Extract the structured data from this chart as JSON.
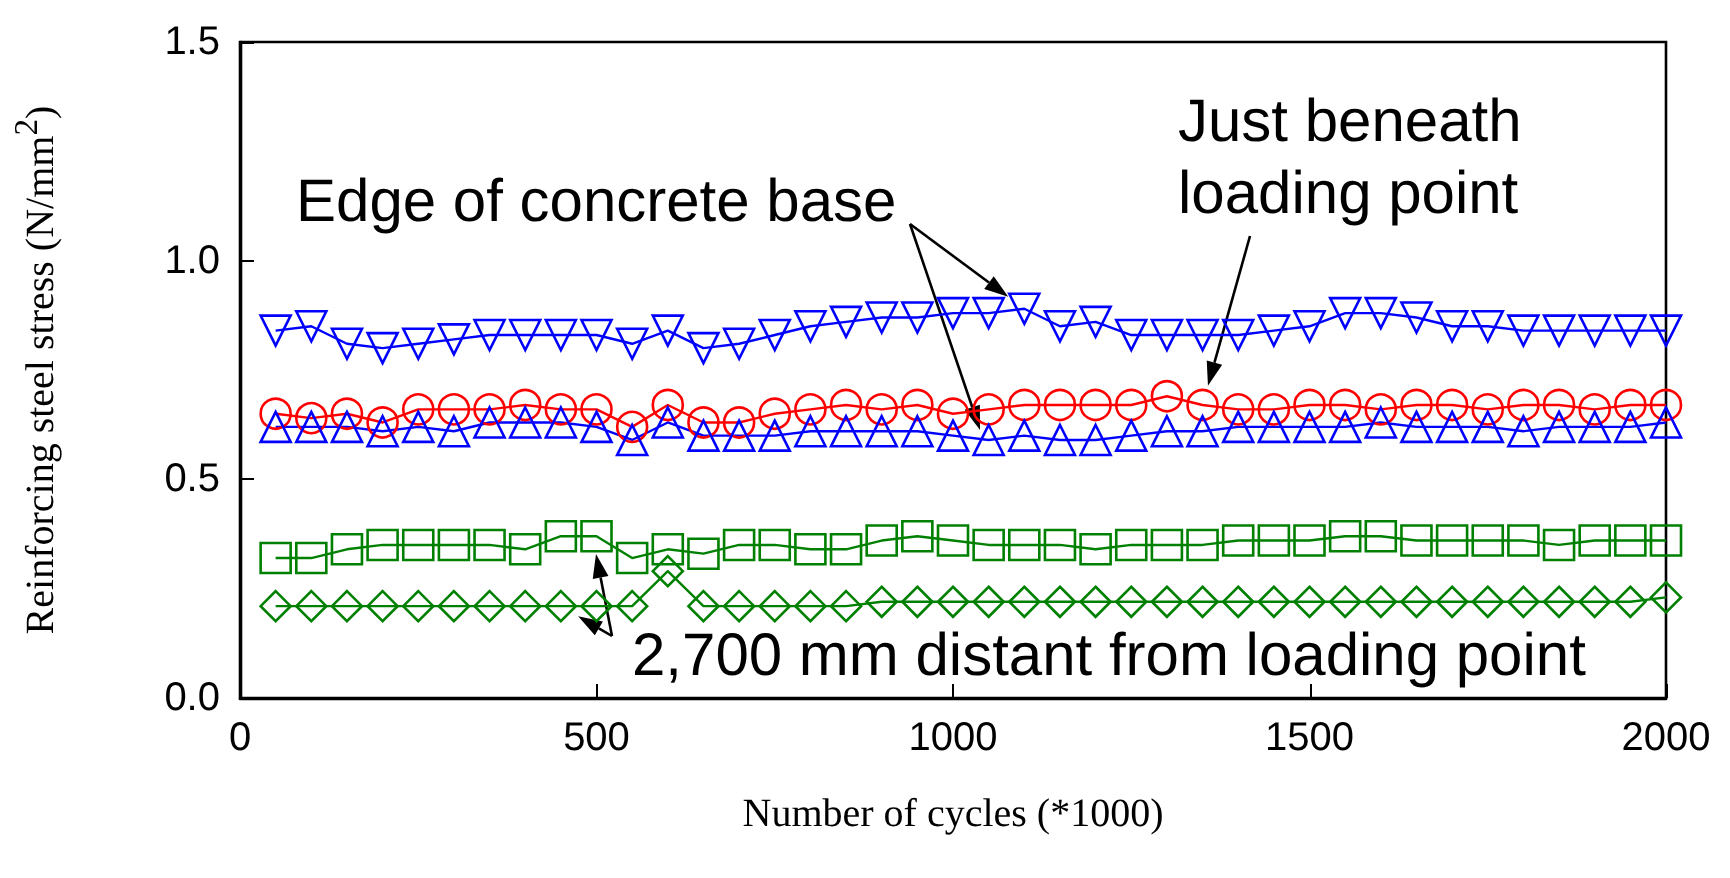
{
  "chart_data": {
    "type": "line",
    "xlabel": "Number of cycles (*1000)",
    "ylabel": "Reinforcing steel stress (N/mm$^{2}$)",
    "x": [
      50,
      100,
      150,
      200,
      250,
      300,
      350,
      400,
      450,
      500,
      550,
      600,
      650,
      700,
      750,
      800,
      850,
      900,
      950,
      1000,
      1050,
      1100,
      1150,
      1200,
      1250,
      1300,
      1350,
      1400,
      1450,
      1500,
      1550,
      1600,
      1650,
      1700,
      1750,
      1800,
      1850,
      1900,
      1950,
      2000
    ],
    "xlim": [
      0,
      2000
    ],
    "xticks": [
      0,
      500,
      1000,
      1500,
      2000
    ],
    "ylim": [
      0,
      1.5
    ],
    "yticks": [
      {
        "value": 0,
        "label": "0.0"
      },
      {
        "value": 0.5,
        "label": "0.5"
      },
      {
        "value": 1,
        "label": "1.0"
      },
      {
        "value": 1.5,
        "label": "1.5"
      }
    ],
    "grid": false,
    "line_style": "solid",
    "series": [
      {
        "color": "#0000ff",
        "marker": "triangle-down",
        "values": [
          0.84,
          0.85,
          0.81,
          0.8,
          0.81,
          0.82,
          0.83,
          0.83,
          0.83,
          0.83,
          0.81,
          0.84,
          0.8,
          0.81,
          0.83,
          0.85,
          0.86,
          0.87,
          0.87,
          0.88,
          0.88,
          0.89,
          0.85,
          0.86,
          0.83,
          0.83,
          0.83,
          0.83,
          0.84,
          0.85,
          0.88,
          0.88,
          0.87,
          0.85,
          0.85,
          0.84,
          0.84,
          0.84,
          0.84,
          0.84
        ]
      },
      {
        "color": "#ff0000",
        "marker": "circle",
        "values": [
          0.65,
          0.64,
          0.65,
          0.63,
          0.66,
          0.66,
          0.66,
          0.67,
          0.66,
          0.66,
          0.62,
          0.67,
          0.63,
          0.63,
          0.65,
          0.66,
          0.67,
          0.66,
          0.67,
          0.65,
          0.66,
          0.67,
          0.67,
          0.67,
          0.67,
          0.69,
          0.67,
          0.66,
          0.66,
          0.67,
          0.67,
          0.66,
          0.67,
          0.67,
          0.66,
          0.67,
          0.67,
          0.66,
          0.67,
          0.67
        ]
      },
      {
        "color": "#0000ff",
        "marker": "triangle",
        "values": [
          0.62,
          0.62,
          0.62,
          0.61,
          0.62,
          0.61,
          0.63,
          0.63,
          0.63,
          0.62,
          0.59,
          0.63,
          0.6,
          0.6,
          0.6,
          0.61,
          0.61,
          0.61,
          0.61,
          0.6,
          0.59,
          0.6,
          0.59,
          0.59,
          0.6,
          0.61,
          0.61,
          0.62,
          0.62,
          0.62,
          0.62,
          0.63,
          0.62,
          0.62,
          0.62,
          0.61,
          0.62,
          0.62,
          0.62,
          0.63
        ]
      },
      {
        "color": "#008000",
        "marker": "square",
        "values": [
          0.32,
          0.32,
          0.34,
          0.35,
          0.35,
          0.35,
          0.35,
          0.34,
          0.37,
          0.37,
          0.32,
          0.34,
          0.33,
          0.35,
          0.35,
          0.34,
          0.34,
          0.36,
          0.37,
          0.36,
          0.35,
          0.35,
          0.35,
          0.34,
          0.35,
          0.35,
          0.35,
          0.36,
          0.36,
          0.36,
          0.37,
          0.37,
          0.36,
          0.36,
          0.36,
          0.36,
          0.35,
          0.36,
          0.36,
          0.36
        ]
      },
      {
        "color": "#008000",
        "marker": "diamond",
        "values": [
          0.21,
          0.21,
          0.21,
          0.21,
          0.21,
          0.21,
          0.21,
          0.21,
          0.21,
          0.21,
          0.21,
          0.29,
          0.21,
          0.21,
          0.21,
          0.21,
          0.21,
          0.22,
          0.22,
          0.22,
          0.22,
          0.22,
          0.22,
          0.22,
          0.22,
          0.22,
          0.22,
          0.22,
          0.22,
          0.22,
          0.22,
          0.22,
          0.22,
          0.22,
          0.22,
          0.22,
          0.22,
          0.22,
          0.22,
          0.23
        ]
      }
    ],
    "annotations": [
      {
        "text": "Edge of concrete base",
        "x": 1100,
        "y": 0.89
      },
      {
        "text": "Just beneath\nloading point",
        "x": 1350,
        "y": 0.67
      },
      {
        "text": "2,700 mm distant from loading point",
        "x": 450,
        "y": 0.21
      }
    ]
  }
}
